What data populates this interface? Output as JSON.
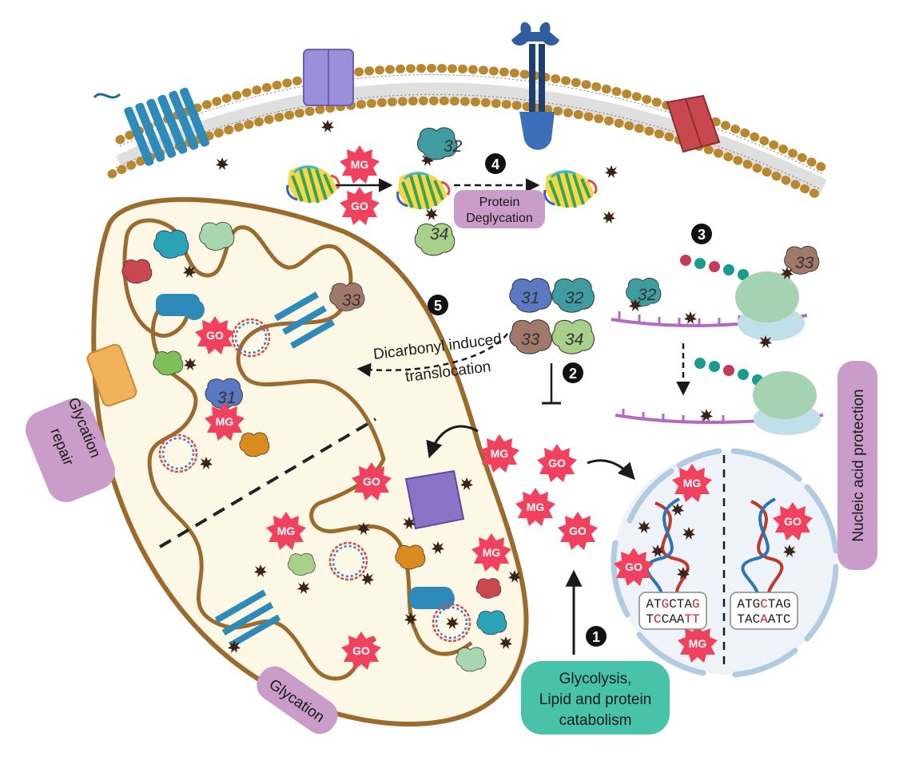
{
  "labels": {
    "protein_deglycation_l1": "Protein",
    "protein_deglycation_l2": "Deglycation",
    "dicarbonyl_l1": "Dicarbonyl induced",
    "dicarbonyl_l2": "translocation",
    "glycation_repair_l1": "Glycation",
    "glycation_repair_l2": "repair",
    "glycation": "Glycation",
    "nucleic_acid_protection": "Nucleic acid protection",
    "glycolysis_l1": "Glycolysis,",
    "glycolysis_l2": "Lipid and protein",
    "glycolysis_l3": "catabolism"
  },
  "steps": [
    "1",
    "2",
    "3",
    "4",
    "5"
  ],
  "molecules": {
    "mg": "MG",
    "go": "GO"
  },
  "proteins": {
    "p31": "31",
    "p32": "32",
    "p33": "33",
    "p34": "34"
  },
  "dna_sequences": {
    "damaged_top": [
      "AT",
      "G",
      "C",
      "TA",
      "G"
    ],
    "damaged_bottom": [
      "T",
      "C",
      "CAA",
      "TT"
    ],
    "intact_top": [
      "ATG",
      "C",
      "TAG"
    ],
    "intact_bottom": [
      "TAC",
      "A",
      "ATC"
    ]
  },
  "colors": {
    "label_box": "#c99cc9",
    "glycolysis_box": "#48c3a9",
    "dicarbonyl_star": "#f0425f",
    "mitochondrion_outline": "#9b6b2e",
    "mitochondrion_fill": "#fdf7e6",
    "membrane_head": "#b8872e",
    "nucleus_fill": "#edf3f9"
  }
}
